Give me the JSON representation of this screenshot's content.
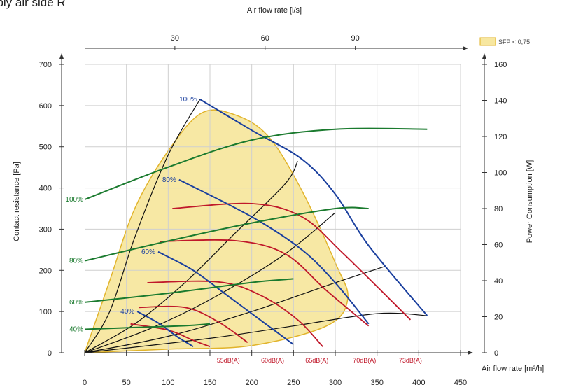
{
  "page": {
    "title": "pply air side R"
  },
  "chart_data": {
    "type": "line",
    "x_axis": {
      "label": "Air flow rate [m³/h]",
      "range": [
        0,
        450
      ],
      "ticks": [
        0,
        50,
        100,
        150,
        200,
        250,
        300,
        350,
        400,
        450
      ]
    },
    "x2_axis": {
      "label": "Air flow rate [l/s]",
      "ticks": [
        30,
        60,
        90
      ]
    },
    "y_left_axis": {
      "label": "Contact resistance [Pa]",
      "range": [
        0,
        700
      ],
      "ticks": [
        0,
        100,
        200,
        300,
        400,
        500,
        600,
        700
      ]
    },
    "y_right_axis": {
      "label": "Power Consumption [W]",
      "range": [
        0,
        160
      ],
      "ticks": [
        0,
        20,
        40,
        60,
        80,
        100,
        120,
        140,
        160
      ]
    },
    "legend": {
      "label": "SFP < 0,75",
      "color": "#f7e7a0",
      "position": "top-right"
    },
    "sfp_region": [
      [
        0,
        0
      ],
      [
        30,
        40
      ],
      [
        60,
        80
      ],
      [
        100,
        112
      ],
      [
        140,
        133
      ],
      [
        180,
        132
      ],
      [
        220,
        120
      ],
      [
        260,
        90
      ],
      [
        300,
        50
      ],
      [
        315,
        30
      ],
      [
        290,
        15
      ],
      [
        200,
        4
      ],
      [
        100,
        2
      ],
      [
        0,
        0
      ]
    ],
    "pressure_curves": [
      {
        "name": "100%",
        "color": "#1a3f9e",
        "points": [
          [
            138,
            615
          ],
          [
            200,
            540
          ],
          [
            260,
            470
          ],
          [
            300,
            385
          ],
          [
            340,
            260
          ],
          [
            410,
            90
          ]
        ]
      },
      {
        "name": "80%",
        "color": "#1a3f9e",
        "points": [
          [
            113,
            420
          ],
          [
            200,
            330
          ],
          [
            260,
            250
          ],
          [
            300,
            170
          ],
          [
            340,
            70
          ]
        ]
      },
      {
        "name": "60%",
        "color": "#1a3f9e",
        "points": [
          [
            88,
            245
          ],
          [
            130,
            200
          ],
          [
            170,
            140
          ],
          [
            210,
            80
          ],
          [
            250,
            20
          ]
        ]
      },
      {
        "name": "40%",
        "color": "#1a3f9e",
        "points": [
          [
            63,
            100
          ],
          [
            90,
            70
          ],
          [
            110,
            40
          ],
          [
            130,
            15
          ]
        ]
      }
    ],
    "sound_curves": [
      {
        "name": "73dB(A)",
        "color": "#c0182a",
        "points": [
          [
            105,
            350
          ],
          [
            200,
            362
          ],
          [
            260,
            330
          ],
          [
            310,
            240
          ],
          [
            390,
            80
          ]
        ]
      },
      {
        "name": "70dB(A)",
        "color": "#c0182a",
        "points": [
          [
            90,
            270
          ],
          [
            180,
            272
          ],
          [
            240,
            240
          ],
          [
            290,
            150
          ],
          [
            340,
            65
          ]
        ]
      },
      {
        "name": "65dB(A)",
        "color": "#c0182a",
        "points": [
          [
            75,
            170
          ],
          [
            160,
            172
          ],
          [
            210,
            140
          ],
          [
            255,
            80
          ],
          [
            285,
            15
          ]
        ]
      },
      {
        "name": "60dB(A)",
        "color": "#c0182a",
        "points": [
          [
            65,
            110
          ],
          [
            120,
            110
          ],
          [
            160,
            75
          ],
          [
            195,
            25
          ]
        ]
      },
      {
        "name": "55dB(A)",
        "color": "#c0182a",
        "points": [
          [
            55,
            70
          ],
          [
            100,
            55
          ],
          [
            130,
            30
          ],
          [
            150,
            15
          ]
        ]
      }
    ],
    "power_curves": [
      {
        "name": "100%",
        "color": "#1a7a2e",
        "points": [
          [
            0,
            85
          ],
          [
            100,
            103
          ],
          [
            200,
            118
          ],
          [
            300,
            124
          ],
          [
            410,
            124
          ]
        ]
      },
      {
        "name": "80%",
        "color": "#1a7a2e",
        "points": [
          [
            0,
            51
          ],
          [
            100,
            62
          ],
          [
            200,
            72
          ],
          [
            300,
            80
          ],
          [
            340,
            80
          ]
        ]
      },
      {
        "name": "60%",
        "color": "#1a7a2e",
        "points": [
          [
            0,
            28
          ],
          [
            100,
            33
          ],
          [
            200,
            39
          ],
          [
            250,
            41
          ]
        ]
      },
      {
        "name": "40%",
        "color": "#1a7a2e",
        "points": [
          [
            0,
            13
          ],
          [
            60,
            14
          ],
          [
            120,
            15
          ],
          [
            150,
            16
          ]
        ]
      }
    ],
    "system_curves": [
      {
        "points": [
          [
            0,
            0
          ],
          [
            30,
            100
          ],
          [
            60,
            280
          ],
          [
            100,
            480
          ],
          [
            138,
            615
          ]
        ]
      },
      {
        "points": [
          [
            0,
            0
          ],
          [
            60,
            70
          ],
          [
            120,
            170
          ],
          [
            180,
            290
          ],
          [
            240,
            410
          ],
          [
            255,
            465
          ]
        ]
      },
      {
        "points": [
          [
            0,
            0
          ],
          [
            80,
            60
          ],
          [
            160,
            140
          ],
          [
            240,
            240
          ],
          [
            300,
            340
          ]
        ]
      },
      {
        "points": [
          [
            0,
            0
          ],
          [
            100,
            40
          ],
          [
            200,
            100
          ],
          [
            300,
            170
          ],
          [
            360,
            210
          ]
        ]
      },
      {
        "points": [
          [
            0,
            0
          ],
          [
            150,
            35
          ],
          [
            250,
            65
          ],
          [
            350,
            95
          ],
          [
            410,
            90
          ]
        ]
      }
    ],
    "sound_labels": [
      "55dB(A)",
      "60dB(A)",
      "65dB(A)",
      "70dB(A)",
      "73dB(A)"
    ],
    "sound_label_x": [
      172,
      225,
      278,
      335,
      390
    ],
    "pct_labels_blue": [
      {
        "text": "100%",
        "x": 138,
        "y": 615
      },
      {
        "text": "80%",
        "x": 113,
        "y": 420
      },
      {
        "text": "60%",
        "x": 88,
        "y": 245
      },
      {
        "text": "40%",
        "x": 63,
        "y": 100
      }
    ],
    "pct_labels_green": [
      "100%",
      "80%",
      "60%",
      "40%"
    ]
  }
}
